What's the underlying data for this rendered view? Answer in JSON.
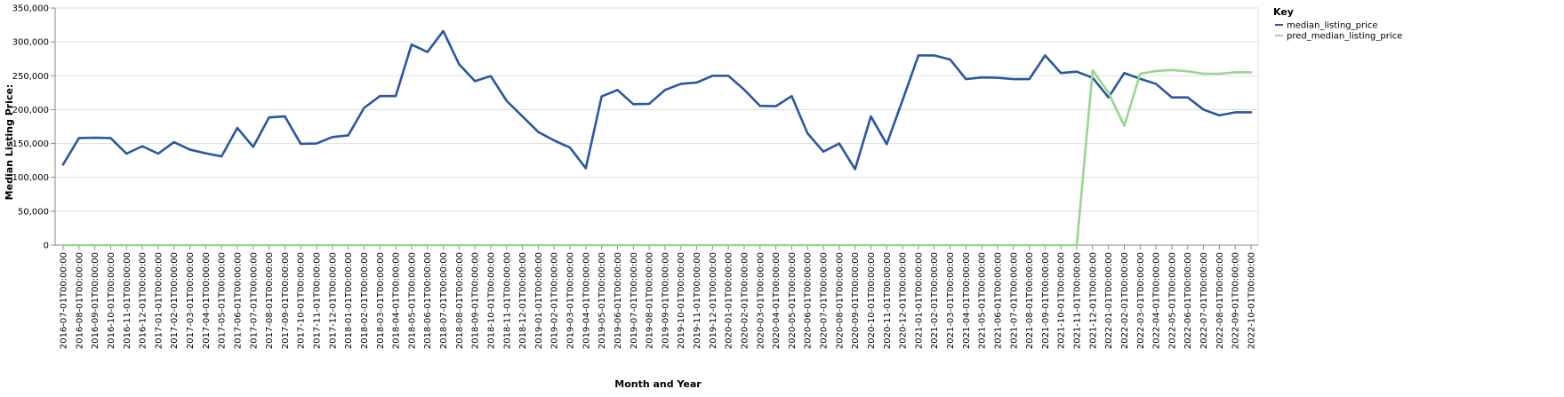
{
  "chart_data": {
    "type": "line",
    "title": "",
    "xlabel": "Month and Year",
    "ylabel": "Median Listing Price:",
    "ylim": [
      0,
      350000
    ],
    "yticks": [
      0,
      50000,
      100000,
      150000,
      200000,
      250000,
      300000,
      350000
    ],
    "ytick_labels": [
      "0",
      "50,000",
      "100,000",
      "150,000",
      "200,000",
      "250,000",
      "300,000",
      "350,000"
    ],
    "grid": true,
    "legend": {
      "title": "Key",
      "placement": "top-right"
    },
    "x": [
      "2016-07-01T00:00:00",
      "2016-08-01T00:00:00",
      "2016-09-01T00:00:00",
      "2016-10-01T00:00:00",
      "2016-11-01T00:00:00",
      "2016-12-01T00:00:00",
      "2017-01-01T00:00:00",
      "2017-02-01T00:00:00",
      "2017-03-01T00:00:00",
      "2017-04-01T00:00:00",
      "2017-05-01T00:00:00",
      "2017-06-01T00:00:00",
      "2017-07-01T00:00:00",
      "2017-08-01T00:00:00",
      "2017-09-01T00:00:00",
      "2017-10-01T00:00:00",
      "2017-11-01T00:00:00",
      "2017-12-01T00:00:00",
      "2018-01-01T00:00:00",
      "2018-02-01T00:00:00",
      "2018-03-01T00:00:00",
      "2018-04-01T00:00:00",
      "2018-05-01T00:00:00",
      "2018-06-01T00:00:00",
      "2018-07-01T00:00:00",
      "2018-08-01T00:00:00",
      "2018-09-01T00:00:00",
      "2018-10-01T00:00:00",
      "2018-11-01T00:00:00",
      "2018-12-01T00:00:00",
      "2019-01-01T00:00:00",
      "2019-02-01T00:00:00",
      "2019-03-01T00:00:00",
      "2019-04-01T00:00:00",
      "2019-05-01T00:00:00",
      "2019-06-01T00:00:00",
      "2019-07-01T00:00:00",
      "2019-08-01T00:00:00",
      "2019-09-01T00:00:00",
      "2019-10-01T00:00:00",
      "2019-11-01T00:00:00",
      "2019-12-01T00:00:00",
      "2020-01-01T00:00:00",
      "2020-02-01T00:00:00",
      "2020-03-01T00:00:00",
      "2020-04-01T00:00:00",
      "2020-05-01T00:00:00",
      "2020-06-01T00:00:00",
      "2020-07-01T00:00:00",
      "2020-08-01T00:00:00",
      "2020-09-01T00:00:00",
      "2020-10-01T00:00:00",
      "2020-11-01T00:00:00",
      "2020-12-01T00:00:00",
      "2021-01-01T00:00:00",
      "2021-02-01T00:00:00",
      "2021-03-01T00:00:00",
      "2021-04-01T00:00:00",
      "2021-05-01T00:00:00",
      "2021-06-01T00:00:00",
      "2021-07-01T00:00:00",
      "2021-08-01T00:00:00",
      "2021-09-01T00:00:00",
      "2021-10-01T00:00:00",
      "2021-11-01T00:00:00",
      "2021-12-01T00:00:00",
      "2022-01-01T00:00:00",
      "2022-02-01T00:00:00",
      "2022-03-01T00:00:00",
      "2022-04-01T00:00:00",
      "2022-05-01T00:00:00",
      "2022-06-01T00:00:00",
      "2022-07-01T00:00:00",
      "2022-08-01T00:00:00",
      "2022-09-01T00:00:00",
      "2022-10-01T00:00:00"
    ],
    "series": [
      {
        "name": "median_listing_price",
        "color": "#2a579e",
        "values": [
          119000,
          158000,
          158500,
          158000,
          135000,
          146000,
          135000,
          152000,
          141000,
          135500,
          131000,
          173000,
          145000,
          188500,
          190000,
          149500,
          150000,
          159500,
          162000,
          202500,
          220000,
          220000,
          296000,
          285000,
          316000,
          267000,
          242000,
          249500,
          213000,
          190000,
          167000,
          154500,
          144000,
          113500,
          219500,
          229000,
          208000,
          208500,
          229000,
          238000,
          240000,
          250000,
          250000,
          229500,
          205500,
          205000,
          220000,
          165000,
          138000,
          150000,
          112000,
          190000,
          149000,
          214000,
          280000,
          280000,
          274000,
          245000,
          247500,
          247000,
          245000,
          245000,
          280000,
          254000,
          256000,
          247000,
          218000,
          254000,
          245500,
          238000,
          218000,
          218000,
          200000,
          191500,
          196000,
          196000
        ]
      },
      {
        "name": "pred_median_listing_price",
        "color": "#98d68f",
        "values": [
          0,
          0,
          0,
          0,
          0,
          0,
          0,
          0,
          0,
          0,
          0,
          0,
          0,
          0,
          0,
          0,
          0,
          0,
          0,
          0,
          0,
          0,
          0,
          0,
          0,
          0,
          0,
          0,
          0,
          0,
          0,
          0,
          0,
          0,
          0,
          0,
          0,
          0,
          0,
          0,
          0,
          0,
          0,
          0,
          0,
          0,
          0,
          0,
          0,
          0,
          0,
          0,
          0,
          0,
          0,
          0,
          0,
          0,
          0,
          0,
          0,
          0,
          0,
          0,
          0,
          258000,
          225000,
          176000,
          253000,
          257000,
          258500,
          256500,
          253000,
          253000,
          255000,
          255000
        ]
      }
    ]
  }
}
